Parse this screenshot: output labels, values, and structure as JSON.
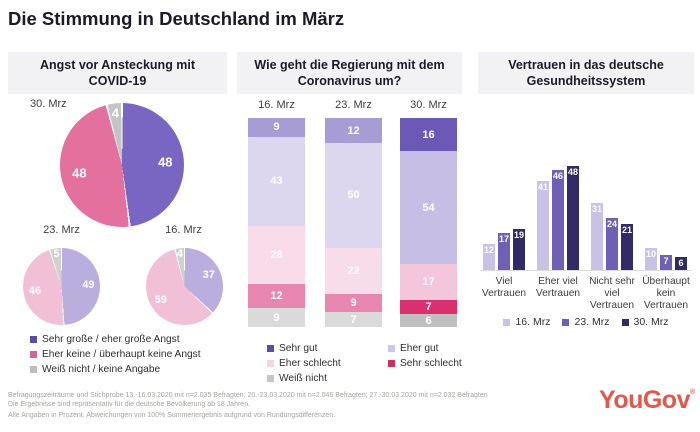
{
  "title": "Die Stimmung in Deutschland im März",
  "panels": {
    "fear": {
      "title": "Angst vor Ansteckung mit COVID-19"
    },
    "government": {
      "title": "Wie geht die Regierung mit dem Coronavirus um?"
    },
    "trust": {
      "title": "Vertrauen in das deutsche Gesundheitssystem"
    }
  },
  "chart_data": [
    {
      "type": "pie",
      "title": "Angst vor Ansteckung mit COVID-19",
      "legend": [
        {
          "label": "Sehr große / eher große Angst",
          "color": "#5b4da6"
        },
        {
          "label": "Eher keine / überhaupt keine Angst",
          "color": "#d8639c"
        },
        {
          "label": "Weiß nicht / keine Angabe",
          "color": "#bdbdbd"
        }
      ],
      "pies": [
        {
          "label": "30. Mrz",
          "values": [
            48,
            48,
            4
          ],
          "colors": [
            "#7866c2",
            "#e4709d",
            "#c4c4c4"
          ]
        },
        {
          "label": "23. Mrz",
          "values": [
            49,
            46,
            5
          ],
          "colors": [
            "#b9aede",
            "#f2c0d6",
            "#d0d0d0"
          ]
        },
        {
          "label": "16. Mrz",
          "values": [
            37,
            59,
            4
          ],
          "colors": [
            "#b9aede",
            "#f2c0d6",
            "#d0d0d0"
          ]
        }
      ]
    },
    {
      "type": "stacked-bar",
      "title": "Wie geht die Regierung mit dem Coronavirus um?",
      "series_labels": [
        "Sehr gut",
        "Eher gut",
        "Eher schlecht",
        "Sehr schlecht",
        "Weiß nicht"
      ],
      "columns": [
        {
          "label": "16. Mrz",
          "values": [
            9,
            43,
            28,
            12,
            9
          ],
          "colors": [
            "#a89cd4",
            "#dcd7ef",
            "#f8dcea",
            "#e787af",
            "#dadada"
          ]
        },
        {
          "label": "23. Mrz",
          "values": [
            12,
            50,
            22,
            9,
            7
          ],
          "colors": [
            "#a89cd4",
            "#dcd7ef",
            "#f8dcea",
            "#e787af",
            "#dadada"
          ]
        },
        {
          "label": "30. Mrz",
          "values": [
            16,
            54,
            17,
            7,
            6
          ],
          "colors": [
            "#6b59b5",
            "#c6bee4",
            "#f3c6db",
            "#da3070",
            "#bfbfbf"
          ]
        }
      ],
      "legend": [
        {
          "label": "Sehr gut",
          "color": "#5b4da6"
        },
        {
          "label": "Eher gut",
          "color": "#cdc6e9"
        },
        {
          "label": "Eher schlecht",
          "color": "#f5d3e3"
        },
        {
          "label": "Sehr schlecht",
          "color": "#cc2e66"
        },
        {
          "label": "Weiß nicht",
          "color": "#c6c6c6"
        }
      ]
    },
    {
      "type": "grouped-bar",
      "title": "Vertrauen in das deutsche Gesundheitssystem",
      "categories": [
        [
          "Viel",
          "Vertrauen"
        ],
        [
          "Eher viel",
          "Vertrauen"
        ],
        [
          "Nicht sehr",
          "viel",
          "Vertrauen"
        ],
        [
          "Überhaupt",
          "kein",
          "Vertrauen"
        ]
      ],
      "series": [
        {
          "name": "16. Mrz",
          "color": "#c9c2e5",
          "values": [
            12,
            41,
            31,
            10
          ]
        },
        {
          "name": "23. Mrz",
          "color": "#6f60b6",
          "values": [
            17,
            46,
            24,
            7
          ]
        },
        {
          "name": "30. Mrz",
          "color": "#322a66",
          "values": [
            19,
            48,
            21,
            6
          ]
        }
      ],
      "ylim": [
        0,
        50
      ],
      "grid": false,
      "legend_position": "bottom"
    }
  ],
  "footer": {
    "lines": [
      "Befragungszeiträume und Stichprobe 13.-16.03.2020 mit n=2.035 Befragten; 20.-23.03.2020 mit n=2.046 Befragten; 27.-30.03.2020 mit n=2.032 Befragten",
      "Die Ergebnisse sind repräsentativ für die deutsche Bevölkerung ab 18 Jahren.",
      "Alle Angaben in Prozent. Abweichungen von 100% Summenergebnis aufgrund von Rundungsdifferenzen."
    ]
  },
  "brand": {
    "logo": "YouGov",
    "mark": "®",
    "color": "#e2584b"
  }
}
